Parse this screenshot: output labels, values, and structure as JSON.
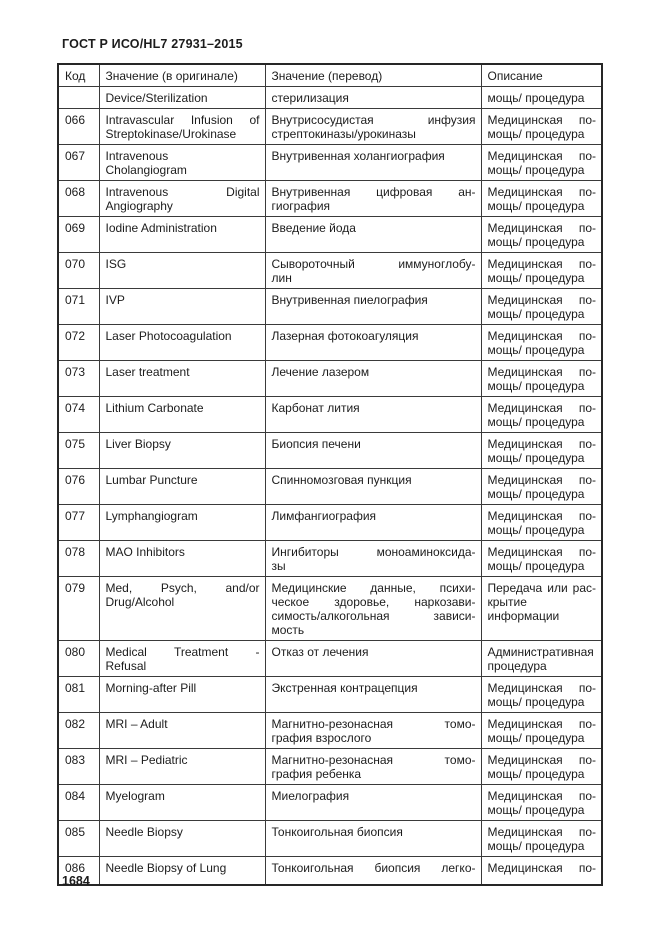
{
  "document": {
    "title": "ГОСТ Р ИСО/HL7 27931–2015",
    "page_number": "1684"
  },
  "colors": {
    "background": "#ffffff",
    "text": "#1c1c1c",
    "table_border": "#3a3a3a"
  },
  "table": {
    "headers": [
      "Код",
      "Значение (в оригинале)",
      "Значение (перевод)",
      "Описание"
    ],
    "rows": [
      {
        "code": "",
        "original": [
          "Device/Sterilization"
        ],
        "translation": [
          "стерилизация"
        ],
        "description": [
          "мощь/ процедура"
        ]
      },
      {
        "code": "066",
        "original": [
          "Intravascular Infusion of",
          "Streptokinase/Urokinase"
        ],
        "translation": [
          "Внутрисосудистая инфузия",
          "стрептокиназы/урокиназы"
        ],
        "description": [
          "Медицинская по-",
          "мощь/ процедура"
        ]
      },
      {
        "code": "067",
        "original": [
          "Intravenous",
          "Cholangiogram"
        ],
        "translation": [
          "Внутривенная холангиография"
        ],
        "description": [
          "Медицинская по-",
          "мощь/ процедура"
        ]
      },
      {
        "code": "068",
        "original": [
          "Intravenous Digital",
          "Angiography"
        ],
        "translation": [
          "Внутривенная цифровая ан-",
          "гиография"
        ],
        "description": [
          "Медицинская по-",
          "мощь/ процедура"
        ]
      },
      {
        "code": "069",
        "original": [
          "Iodine Administration"
        ],
        "translation": [
          "Введение йода"
        ],
        "description": [
          "Медицинская по-",
          "мощь/ процедура"
        ]
      },
      {
        "code": "070",
        "original": [
          "ISG"
        ],
        "translation": [
          "Сывороточный иммуноглобу-",
          "лин"
        ],
        "description": [
          "Медицинская по-",
          "мощь/ процедура"
        ]
      },
      {
        "code": "071",
        "original": [
          "IVP"
        ],
        "translation": [
          "Внутривенная пиелография"
        ],
        "description": [
          "Медицинская по-",
          "мощь/ процедура"
        ]
      },
      {
        "code": "072",
        "original": [
          "Laser Photocoagulation"
        ],
        "translation": [
          "Лазерная фотокоагуляция"
        ],
        "description": [
          "Медицинская по-",
          "мощь/ процедура"
        ]
      },
      {
        "code": "073",
        "original": [
          "Laser treatment"
        ],
        "translation": [
          "Лечение лазером"
        ],
        "description": [
          "Медицинская по-",
          "мощь/ процедура"
        ]
      },
      {
        "code": "074",
        "original": [
          "Lithium Carbonate"
        ],
        "translation": [
          "Карбонат лития"
        ],
        "description": [
          "Медицинская по-",
          "мощь/ процедура"
        ]
      },
      {
        "code": "075",
        "original": [
          "Liver Biopsy"
        ],
        "translation": [
          "Биопсия печени"
        ],
        "description": [
          "Медицинская по-",
          "мощь/ процедура"
        ]
      },
      {
        "code": "076",
        "original": [
          "Lumbar Puncture"
        ],
        "translation": [
          "Спинномозговая пункция"
        ],
        "description": [
          "Медицинская по-",
          "мощь/ процедура"
        ]
      },
      {
        "code": "077",
        "original": [
          "Lymphangiogram"
        ],
        "translation": [
          "Лимфангиография"
        ],
        "description": [
          "Медицинская по-",
          "мощь/ процедура"
        ]
      },
      {
        "code": "078",
        "original": [
          "MAO Inhibitors"
        ],
        "translation": [
          "Ингибиторы моноаминоксида-",
          "зы"
        ],
        "description": [
          "Медицинская по-",
          "мощь/ процедура"
        ]
      },
      {
        "code": "079",
        "original": [
          "Med, Psych, and/or",
          "Drug/Alcohol"
        ],
        "translation": [
          "Медицинские данные, психи-",
          "ческое здоровье, наркозави-",
          "симость/алкогольная зависи-",
          "мость"
        ],
        "description": [
          "Передача или рас-",
          "крытие информации"
        ]
      },
      {
        "code": "080",
        "original": [
          "Medical Treatment -",
          "Refusal"
        ],
        "translation": [
          "Отказ от лечения"
        ],
        "description": [
          "Административная",
          "процедура"
        ]
      },
      {
        "code": "081",
        "original": [
          "Morning-after Pill"
        ],
        "translation": [
          "Экстренная контрацепция"
        ],
        "description": [
          "Медицинская по-",
          "мощь/ процедура"
        ]
      },
      {
        "code": "082",
        "original": [
          "MRI – Adult"
        ],
        "translation": [
          "Магнитно-резонасная томо-",
          "графия взрослого"
        ],
        "description": [
          "Медицинская по-",
          "мощь/ процедура"
        ]
      },
      {
        "code": "083",
        "original": [
          "MRI – Pediatric"
        ],
        "translation": [
          "Магнитно-резонасная томо-",
          "графия ребенка"
        ],
        "description": [
          "Медицинская по-",
          "мощь/ процедура"
        ]
      },
      {
        "code": "084",
        "original": [
          "Myelogram"
        ],
        "translation": [
          "Миелография"
        ],
        "description": [
          "Медицинская по-",
          "мощь/ процедура"
        ]
      },
      {
        "code": "085",
        "original": [
          "Needle Biopsy"
        ],
        "translation": [
          "Тонкоигольная биопсия"
        ],
        "description": [
          "Медицинская по-",
          "мощь/ процедура"
        ]
      },
      {
        "code": "086",
        "original": [
          "Needle Biopsy of Lung"
        ],
        "translation": [
          "Тонкоигольная биопсия легко-"
        ],
        "description": [
          "Медицинская по-"
        ],
        "force_justify": [
          "translation",
          "description"
        ],
        "cut": true
      }
    ]
  }
}
